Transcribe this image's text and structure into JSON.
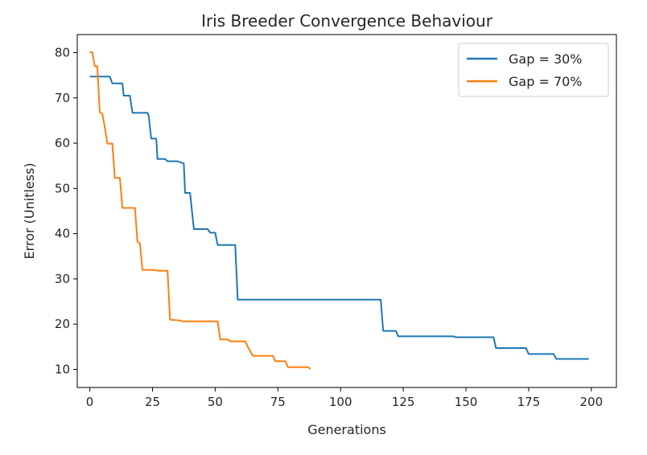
{
  "chart_data": {
    "type": "line",
    "title": "Iris Breeder Convergence Behaviour",
    "xlabel": "Generations",
    "ylabel": "Error (Unitless)",
    "xlim": [
      -5,
      210
    ],
    "ylim": [
      6,
      84
    ],
    "xticks": [
      0,
      25,
      50,
      75,
      100,
      125,
      150,
      175,
      200
    ],
    "yticks": [
      10,
      20,
      30,
      40,
      50,
      60,
      70,
      80
    ],
    "grid": false,
    "legend_position": "top-right",
    "series": [
      {
        "name": "Gap = 30%",
        "color": "#1f77b4",
        "points": [
          [
            0,
            74.7
          ],
          [
            8,
            74.7
          ],
          [
            9,
            73.2
          ],
          [
            13,
            73.2
          ],
          [
            13.5,
            70.5
          ],
          [
            16,
            70.5
          ],
          [
            17,
            66.7
          ],
          [
            23,
            66.7
          ],
          [
            23.5,
            66
          ],
          [
            24.5,
            61
          ],
          [
            26.5,
            61
          ],
          [
            27,
            56.5
          ],
          [
            30,
            56.5
          ],
          [
            31,
            56
          ],
          [
            35,
            56
          ],
          [
            36,
            55.8
          ],
          [
            37.5,
            55.5
          ],
          [
            38,
            49
          ],
          [
            40,
            49
          ],
          [
            41.5,
            41
          ],
          [
            47,
            41
          ],
          [
            48,
            40.2
          ],
          [
            50,
            40.2
          ],
          [
            51,
            37.5
          ],
          [
            58,
            37.5
          ],
          [
            59,
            25.4
          ],
          [
            116,
            25.4
          ],
          [
            117,
            18.5
          ],
          [
            122,
            18.5
          ],
          [
            123,
            17.3
          ],
          [
            145,
            17.3
          ],
          [
            146,
            17.1
          ],
          [
            161,
            17.1
          ],
          [
            162,
            14.7
          ],
          [
            174,
            14.7
          ],
          [
            175,
            13.4
          ],
          [
            185,
            13.4
          ],
          [
            186,
            12.3
          ],
          [
            199,
            12.3
          ]
        ]
      },
      {
        "name": "Gap = 70%",
        "color": "#ff7f0e",
        "points": [
          [
            0,
            80.1
          ],
          [
            1,
            80.1
          ],
          [
            2,
            77
          ],
          [
            3,
            77
          ],
          [
            4,
            66.8
          ],
          [
            5,
            66.5
          ],
          [
            6,
            63.5
          ],
          [
            7,
            59.9
          ],
          [
            9,
            59.9
          ],
          [
            10,
            52.3
          ],
          [
            12,
            52.3
          ],
          [
            13,
            45.7
          ],
          [
            18,
            45.7
          ],
          [
            19,
            38.2
          ],
          [
            20,
            37.8
          ],
          [
            21,
            32
          ],
          [
            26,
            32
          ],
          [
            27,
            31.8
          ],
          [
            31,
            31.8
          ],
          [
            32,
            21
          ],
          [
            36,
            20.8
          ],
          [
            37,
            20.6
          ],
          [
            51,
            20.6
          ],
          [
            52,
            16.6
          ],
          [
            55,
            16.6
          ],
          [
            56,
            16.2
          ],
          [
            62,
            16.2
          ],
          [
            63,
            15
          ],
          [
            65,
            13
          ],
          [
            73,
            13
          ],
          [
            74,
            11.8
          ],
          [
            78,
            11.8
          ],
          [
            79,
            10.5
          ],
          [
            87,
            10.5
          ],
          [
            88,
            10.1
          ]
        ]
      }
    ]
  }
}
